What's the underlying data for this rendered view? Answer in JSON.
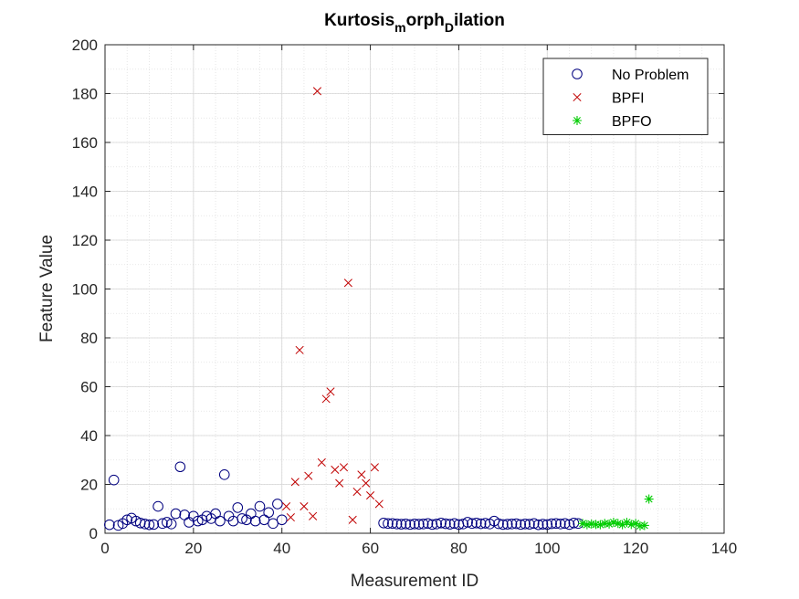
{
  "chart_data": {
    "type": "scatter",
    "title_parts": [
      {
        "text": "Kurtosis",
        "sub": false
      },
      {
        "text": "m",
        "sub": true
      },
      {
        "text": "orph",
        "sub": false
      },
      {
        "text": "D",
        "sub": true
      },
      {
        "text": "ilation",
        "sub": false
      }
    ],
    "xlabel": "Measurement ID",
    "ylabel": "Feature Value",
    "xlim": [
      0,
      140
    ],
    "ylim": [
      0,
      200
    ],
    "xticks": [
      0,
      20,
      40,
      60,
      80,
      100,
      120,
      140
    ],
    "yticks": [
      0,
      20,
      40,
      60,
      80,
      100,
      120,
      140,
      160,
      180,
      200
    ],
    "grid": true,
    "minor_grid": true,
    "legend_position": "top-right",
    "series": [
      {
        "name": "No Problem",
        "marker": "circle",
        "color": "#00007f",
        "points": [
          [
            1,
            3.5
          ],
          [
            2,
            21.8
          ],
          [
            3,
            3.2
          ],
          [
            4,
            4.0
          ],
          [
            5,
            5.5
          ],
          [
            6,
            6.2
          ],
          [
            7,
            5.0
          ],
          [
            8,
            4.2
          ],
          [
            9,
            3.8
          ],
          [
            10,
            3.5
          ],
          [
            11,
            3.6
          ],
          [
            12,
            11.0
          ],
          [
            13,
            4.0
          ],
          [
            14,
            4.5
          ],
          [
            15,
            3.8
          ],
          [
            16,
            8.0
          ],
          [
            17,
            27.2
          ],
          [
            18,
            7.5
          ],
          [
            19,
            4.5
          ],
          [
            20,
            7.0
          ],
          [
            21,
            5.0
          ],
          [
            22,
            5.5
          ],
          [
            23,
            7.0
          ],
          [
            24,
            6.0
          ],
          [
            25,
            8.0
          ],
          [
            26,
            5.0
          ],
          [
            27,
            24.0
          ],
          [
            28,
            7.0
          ],
          [
            29,
            5.0
          ],
          [
            30,
            10.5
          ],
          [
            31,
            6.0
          ],
          [
            32,
            5.5
          ],
          [
            33,
            8.0
          ],
          [
            34,
            5.0
          ],
          [
            35,
            11.0
          ],
          [
            36,
            5.5
          ],
          [
            37,
            8.5
          ],
          [
            38,
            4.0
          ],
          [
            39,
            12.0
          ],
          [
            40,
            5.5
          ],
          [
            63,
            4.2
          ],
          [
            64,
            4.0
          ],
          [
            65,
            4.0
          ],
          [
            66,
            3.8
          ],
          [
            67,
            3.7
          ],
          [
            68,
            3.8
          ],
          [
            69,
            3.6
          ],
          [
            70,
            3.8
          ],
          [
            71,
            3.7
          ],
          [
            72,
            3.8
          ],
          [
            73,
            4.0
          ],
          [
            74,
            3.6
          ],
          [
            75,
            3.8
          ],
          [
            76,
            4.2
          ],
          [
            77,
            3.9
          ],
          [
            78,
            3.7
          ],
          [
            79,
            4.0
          ],
          [
            80,
            3.6
          ],
          [
            81,
            3.8
          ],
          [
            82,
            4.5
          ],
          [
            83,
            4.0
          ],
          [
            84,
            4.2
          ],
          [
            85,
            3.9
          ],
          [
            86,
            4.1
          ],
          [
            87,
            3.8
          ],
          [
            88,
            5.0
          ],
          [
            89,
            3.9
          ],
          [
            90,
            3.6
          ],
          [
            91,
            3.7
          ],
          [
            92,
            3.8
          ],
          [
            93,
            3.9
          ],
          [
            94,
            3.6
          ],
          [
            95,
            3.8
          ],
          [
            96,
            3.7
          ],
          [
            97,
            4.0
          ],
          [
            98,
            3.5
          ],
          [
            99,
            3.7
          ],
          [
            100,
            3.6
          ],
          [
            101,
            3.9
          ],
          [
            102,
            4.0
          ],
          [
            103,
            3.8
          ],
          [
            104,
            4.0
          ],
          [
            105,
            3.6
          ],
          [
            106,
            4.2
          ],
          [
            107,
            4.0
          ]
        ]
      },
      {
        "name": "BPFI",
        "marker": "x",
        "color": "#c00000",
        "points": [
          [
            41,
            11.0
          ],
          [
            42,
            6.5
          ],
          [
            43,
            21.0
          ],
          [
            44,
            75.0
          ],
          [
            45,
            11.0
          ],
          [
            46,
            23.5
          ],
          [
            47,
            7.0
          ],
          [
            48,
            181.0
          ],
          [
            49,
            29.0
          ],
          [
            50,
            55.0
          ],
          [
            51,
            58.0
          ],
          [
            52,
            26.0
          ],
          [
            53,
            20.5
          ],
          [
            54,
            27.0
          ],
          [
            55,
            102.5
          ],
          [
            56,
            5.5
          ],
          [
            57,
            17.0
          ],
          [
            58,
            24.0
          ],
          [
            59,
            20.5
          ],
          [
            60,
            15.5
          ],
          [
            61,
            27.0
          ],
          [
            62,
            12.0
          ]
        ]
      },
      {
        "name": "BPFO",
        "marker": "star",
        "color": "#00cc00",
        "points": [
          [
            108,
            4.0
          ],
          [
            109,
            3.5
          ],
          [
            110,
            3.8
          ],
          [
            111,
            3.6
          ],
          [
            112,
            3.5
          ],
          [
            113,
            4.0
          ],
          [
            114,
            3.8
          ],
          [
            115,
            4.5
          ],
          [
            116,
            4.0
          ],
          [
            117,
            3.5
          ],
          [
            118,
            4.5
          ],
          [
            119,
            3.6
          ],
          [
            120,
            4.0
          ],
          [
            121,
            3.0
          ],
          [
            122,
            3.2
          ],
          [
            123,
            14.0
          ]
        ]
      }
    ]
  },
  "colors": {
    "axis": "#262626",
    "grid": "#e0e0e0",
    "background": "#ffffff"
  }
}
